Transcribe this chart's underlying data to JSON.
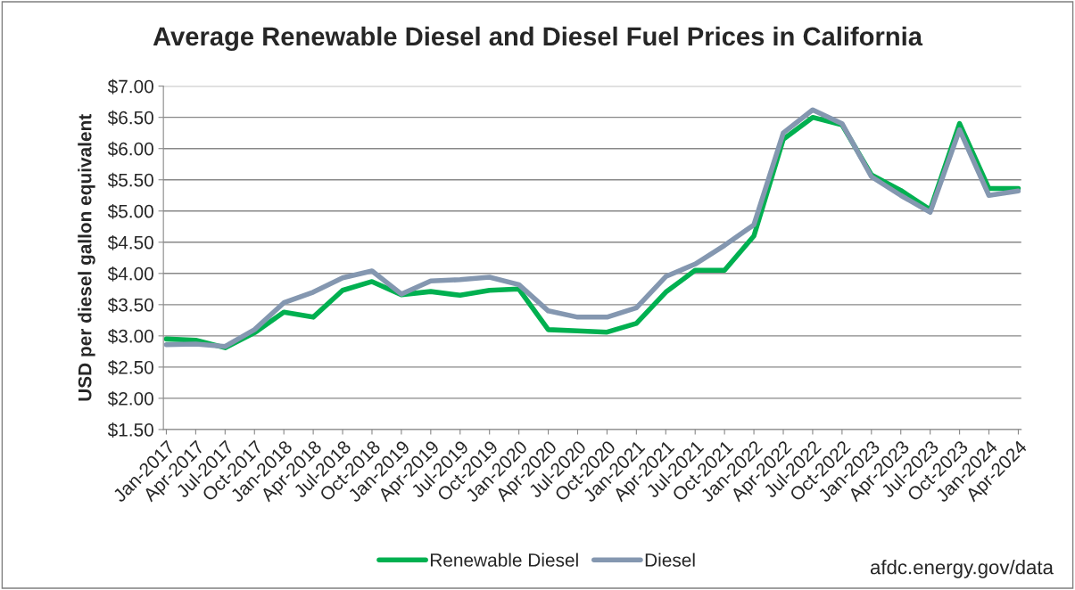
{
  "chart_data": {
    "type": "line",
    "title": "Average Renewable Diesel and Diesel Fuel Prices in California",
    "ylabel": "USD per diesel gallon equivalent",
    "categories": [
      "Jan-2017",
      "Apr-2017",
      "Jul-2017",
      "Oct-2017",
      "Jan-2018",
      "Apr-2018",
      "Jul-2018",
      "Oct-2018",
      "Jan-2019",
      "Apr-2019",
      "Jul-2019",
      "Oct-2019",
      "Jan-2020",
      "Apr-2020",
      "Jul-2020",
      "Oct-2020",
      "Jan-2021",
      "Apr-2021",
      "Jul-2021",
      "Oct-2021",
      "Jan-2022",
      "Apr-2022",
      "Jul-2022",
      "Oct-2022",
      "Jan-2023",
      "Apr-2023",
      "Jul-2023",
      "Oct-2023",
      "Jan-2024",
      "Apr-2024"
    ],
    "series": [
      {
        "name": "Renewable Diesel",
        "color": "#00b050",
        "values": [
          2.95,
          2.93,
          2.81,
          3.05,
          3.38,
          3.3,
          3.73,
          3.87,
          3.66,
          3.71,
          3.65,
          3.73,
          3.75,
          3.1,
          3.08,
          3.06,
          3.2,
          3.7,
          4.05,
          4.05,
          4.6,
          6.15,
          6.5,
          6.38,
          5.58,
          5.33,
          5.02,
          6.4,
          5.36,
          5.36
        ]
      },
      {
        "name": "Diesel",
        "color": "#8497b0",
        "values": [
          2.86,
          2.87,
          2.83,
          3.1,
          3.53,
          3.7,
          3.93,
          4.04,
          3.67,
          3.88,
          3.9,
          3.94,
          3.82,
          3.4,
          3.3,
          3.3,
          3.45,
          3.95,
          4.15,
          4.45,
          4.78,
          6.25,
          6.62,
          6.4,
          5.55,
          5.25,
          4.98,
          6.3,
          5.25,
          5.32
        ]
      }
    ],
    "ylim": [
      1.5,
      7.0
    ],
    "yticks": [
      {
        "value": 1.5,
        "label": "$1.50"
      },
      {
        "value": 2.0,
        "label": "$2.00"
      },
      {
        "value": 2.5,
        "label": "$2.50"
      },
      {
        "value": 3.0,
        "label": "$3.00"
      },
      {
        "value": 3.5,
        "label": "$3.50"
      },
      {
        "value": 4.0,
        "label": "$4.00"
      },
      {
        "value": 4.5,
        "label": "$4.50"
      },
      {
        "value": 5.0,
        "label": "$5.00"
      },
      {
        "value": 5.5,
        "label": "$5.50"
      },
      {
        "value": 6.0,
        "label": "$6.00"
      },
      {
        "value": 6.5,
        "label": "$6.50"
      },
      {
        "value": 7.0,
        "label": "$7.00"
      }
    ],
    "grid": "y",
    "legend": "bottom",
    "marker": "none",
    "line_style": "solid",
    "annotations": [
      "afdc.energy.gov/data"
    ]
  }
}
